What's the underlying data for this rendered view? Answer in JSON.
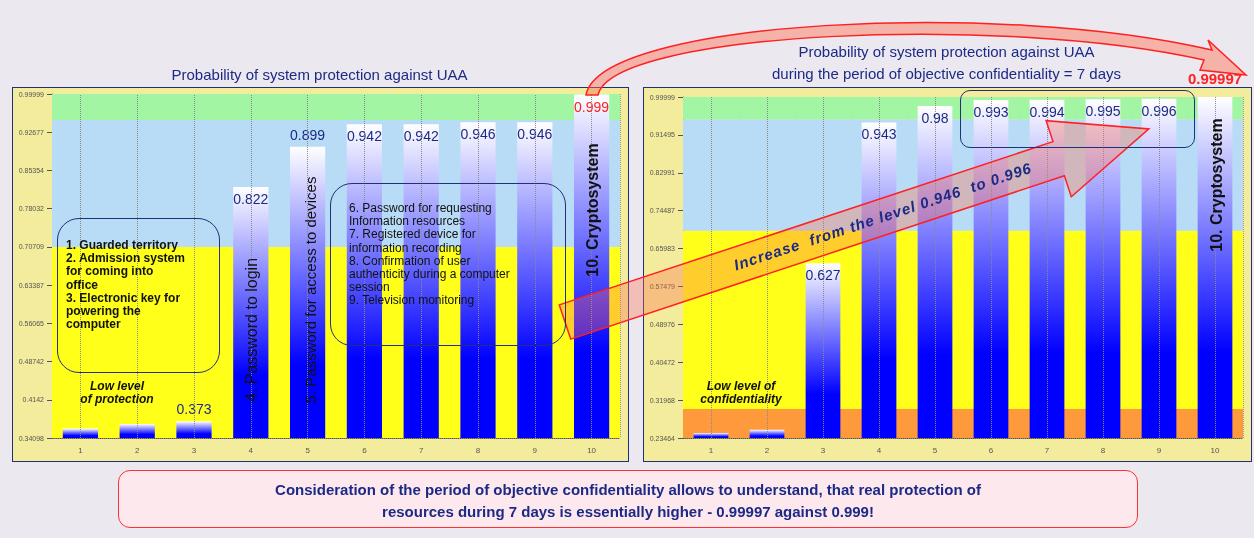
{
  "chart_data": [
    {
      "type": "bar",
      "title": "Probability of system protection against UAA",
      "categories": [
        "1",
        "2",
        "3",
        "4",
        "5",
        "6",
        "7",
        "8",
        "9",
        "10"
      ],
      "values": [
        0.359,
        0.368,
        0.373,
        0.822,
        0.899,
        0.942,
        0.942,
        0.946,
        0.946,
        0.999
      ],
      "color": "#0000ff",
      "value_labels": [
        null,
        null,
        "0.373",
        "0.822",
        "0.899",
        "0.942",
        "0.942",
        "0.946",
        "0.946",
        "0.999"
      ],
      "ylim": [
        0.34098,
        0.99999
      ],
      "yticks": [
        0.34098,
        0.4142,
        0.48742,
        0.56065,
        0.63387,
        0.70709,
        0.78032,
        0.85354,
        0.92677,
        0.99999
      ],
      "grid": "x",
      "bands": [
        {
          "axis": "y",
          "from": 0.34098,
          "to": 0.70709,
          "color": "#ffff1a"
        },
        {
          "axis": "y",
          "from": 0.70709,
          "to": 0.95,
          "color": "#b8dcf6"
        },
        {
          "axis": "y",
          "from": 0.95,
          "to": 0.99999,
          "color": "#a2f5a2"
        }
      ],
      "annotations": [
        "1. Guarded territory\n2. Admission system\nfor coming into\noffice\n3. Electronic key for\npowering the\ncomputer",
        "Low level\nof protection",
        "4. Password to login",
        "5. Password for access to devices",
        "6. Password for requesting\nInformation resources\n7. Registered device for\ninformation recording\n8. Confirmation of user\nauthenticity during a computer\nsession\n9. Television monitoring",
        "10. Cryptosystem"
      ]
    },
    {
      "type": "bar",
      "title": "Probability of system protection against UAA\nduring the period of objective confidentiality = 7 days",
      "categories": [
        "1",
        "2",
        "3",
        "4",
        "5",
        "6",
        "7",
        "8",
        "9",
        "10"
      ],
      "values": [
        0.246,
        0.253,
        0.627,
        0.943,
        0.98,
        0.993,
        0.994,
        0.995,
        0.996,
        0.99997
      ],
      "color": "#0000ff",
      "value_labels": [
        null,
        null,
        "0.627",
        "0.943",
        "0.98",
        "0.993",
        "0.994",
        "0.995",
        "0.996",
        "0.99997"
      ],
      "ylim": [
        0.23464,
        0.99999
      ],
      "yticks": [
        0.23464,
        0.31968,
        0.40472,
        0.48976,
        0.57479,
        0.65983,
        0.74487,
        0.82991,
        0.91495,
        0.99999
      ],
      "grid": "x",
      "bands": [
        {
          "axis": "y",
          "from": 0.23464,
          "to": 0.3,
          "color": "#ff9a3c"
        },
        {
          "axis": "y",
          "from": 0.3,
          "to": 0.7,
          "color": "#ffff1a"
        },
        {
          "axis": "y",
          "from": 0.7,
          "to": 0.95,
          "color": "#b8dcf6"
        },
        {
          "axis": "y",
          "from": 0.95,
          "to": 0.99999,
          "color": "#a2f5a2"
        }
      ],
      "annotations": [
        "Low level of\nconfidentiality",
        "Increase  from the level 0.946  to 0.996",
        "10. Cryptosystem",
        "Consideration of the period of objective confidentiality allows to understand, that real protection of\nresources during 7 days is essentially higher - 0.99997 against 0.999!"
      ]
    }
  ]
}
